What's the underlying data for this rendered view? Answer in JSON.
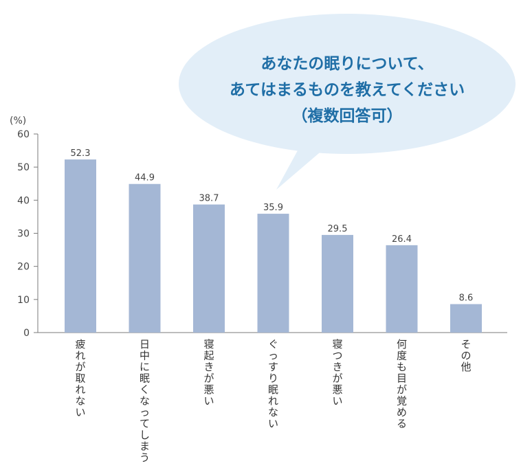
{
  "chart_data": {
    "type": "bar",
    "title": "あなたの眠りについて、\nあてはまるものを教えてください\n（複数回答可）",
    "title_lines": [
      "あなたの眠りについて、",
      "あてはまるものを教えてください",
      "（複数回答可）"
    ],
    "ylabel": "(%)",
    "xlabel": "",
    "ylim": [
      0,
      60
    ],
    "yticks": [
      "0",
      "10",
      "20",
      "30",
      "40",
      "50",
      "60"
    ],
    "categories": [
      "疲れが取れない",
      "日中に眠くなってしまう",
      "寝起きが悪い",
      "ぐっすり眠れない",
      "寝つきが悪い",
      "何度も目が覚める",
      "その他"
    ],
    "values": [
      52.3,
      44.9,
      38.7,
      35.9,
      29.5,
      26.4,
      8.6
    ],
    "value_labels": [
      "52.3",
      "44.9",
      "38.7",
      "35.9",
      "29.5",
      "26.4",
      "8.6"
    ],
    "grid": false,
    "legend": "none",
    "colors": {
      "bar": "#a4b7d5",
      "axis": "#7a7a7a",
      "bubble_fill": "#e2eef8",
      "bubble_text": "#1f6ea6"
    }
  }
}
